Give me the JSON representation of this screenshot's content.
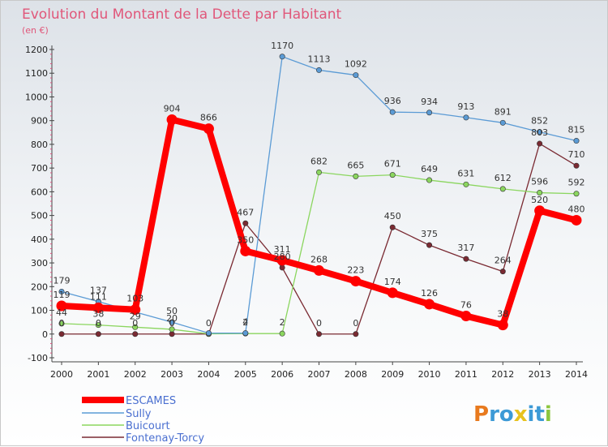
{
  "chart_data": {
    "type": "line",
    "title": "Evolution du Montant de la Dette par Habitant",
    "subtitle": "(en €)",
    "xlabel": "",
    "ylabel": "",
    "ylim": [
      -100,
      1200
    ],
    "y_ticks": [
      -100,
      0,
      100,
      200,
      300,
      400,
      500,
      600,
      700,
      800,
      900,
      1000,
      1100,
      1200
    ],
    "grid": false,
    "legend_position": "bottom-left",
    "categories": [
      "2000",
      "2001",
      "2002",
      "2003",
      "2004",
      "2005",
      "2006",
      "2007",
      "2008",
      "2009",
      "2010",
      "2011",
      "2012",
      "2013",
      "2014"
    ],
    "series": [
      {
        "name": "ESCAMES",
        "color": "#ff0000",
        "values": [
          119,
          111,
          103,
          904,
          866,
          350,
          311,
          268,
          223,
          174,
          126,
          76,
          38,
          520,
          480
        ],
        "labels": [
          "119",
          "111",
          "103",
          "904",
          "866",
          "350",
          "311",
          "268",
          "223",
          "174",
          "126",
          "76",
          "38",
          "520",
          "480"
        ]
      },
      {
        "name": "Sully",
        "color": "#5b9bd5",
        "values": [
          179,
          137,
          93,
          50,
          4,
          4,
          1170,
          1113,
          1092,
          936,
          934,
          913,
          891,
          852,
          815
        ],
        "labels": [
          "179",
          "137",
          "",
          "50",
          "",
          "4",
          "1170",
          "1113",
          "1092",
          "936",
          "934",
          "913",
          "891",
          "852",
          "815"
        ]
      },
      {
        "name": "Buicourt",
        "color": "#8bd65f",
        "values": [
          44,
          38,
          29,
          20,
          1,
          2,
          2,
          682,
          665,
          671,
          649,
          631,
          612,
          596,
          592
        ],
        "labels": [
          "44",
          "38",
          "29",
          "20",
          "",
          "2",
          "2",
          "682",
          "665",
          "671",
          "649",
          "631",
          "612",
          "596",
          "592"
        ]
      },
      {
        "name": "Fontenay-Torcy",
        "color": "#7a2a32",
        "values": [
          0,
          0,
          0,
          0,
          0,
          467,
          280,
          0,
          0,
          450,
          375,
          317,
          264,
          803,
          710
        ],
        "labels": [
          "0",
          "0",
          "0",
          "0",
          "0",
          "467",
          "280",
          "0",
          "0",
          "450",
          "375",
          "317",
          "264",
          "803",
          "710"
        ]
      }
    ]
  },
  "watermark": "Proxiti"
}
